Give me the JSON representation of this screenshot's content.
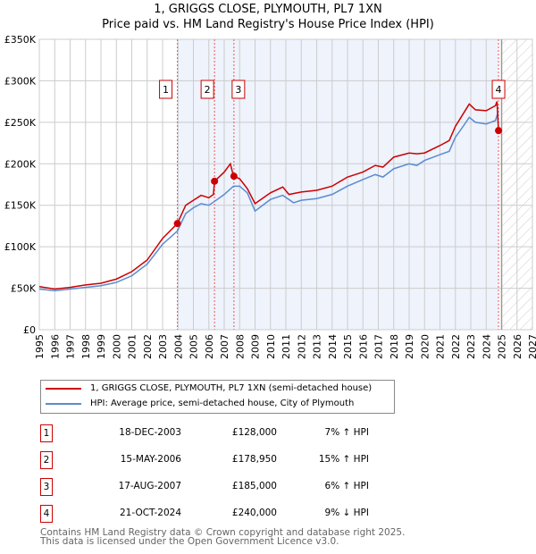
{
  "chart_data": {
    "type": "line",
    "title": "1, GRIGGS CLOSE, PLYMOUTH, PL7 1XN",
    "subtitle": "Price paid vs. HM Land Registry's House Price Index (HPI)",
    "xlim": [
      1995,
      2027
    ],
    "ylim": [
      0,
      350000
    ],
    "x_ticks": [
      "1995",
      "1996",
      "1997",
      "1998",
      "1999",
      "2000",
      "2001",
      "2002",
      "2003",
      "2004",
      "2005",
      "2006",
      "2007",
      "2008",
      "2009",
      "2010",
      "2011",
      "2012",
      "2013",
      "2014",
      "2015",
      "2016",
      "2017",
      "2018",
      "2019",
      "2020",
      "2021",
      "2022",
      "2023",
      "2024",
      "2025",
      "2026",
      "2027"
    ],
    "y_ticks": [
      {
        "v": 0,
        "label": "£0"
      },
      {
        "v": 50000,
        "label": "£50K"
      },
      {
        "v": 100000,
        "label": "£100K"
      },
      {
        "v": 150000,
        "label": "£150K"
      },
      {
        "v": 200000,
        "label": "£200K"
      },
      {
        "v": 250000,
        "label": "£250K"
      },
      {
        "v": 300000,
        "label": "£300K"
      },
      {
        "v": 350000,
        "label": "£350K"
      }
    ],
    "shaded_range": [
      2003.96,
      2024.8
    ],
    "hatched_from": 2025.0,
    "series": [
      {
        "name": "1, GRIGGS CLOSE, PLYMOUTH, PL7 1XN (semi-detached house)",
        "color": "#cc0000",
        "x": [
          1995,
          1996,
          1997,
          1998,
          1999,
          2000,
          2001,
          2002,
          2003,
          2003.96,
          2004.5,
          2005,
          2005.5,
          2006,
          2006.3,
          2006.37,
          2007,
          2007.4,
          2007.6,
          2008,
          2008.5,
          2009,
          2010,
          2010.8,
          2011.2,
          2012,
          2013,
          2014,
          2015,
          2016,
          2016.8,
          2017.3,
          2018,
          2019,
          2019.5,
          2020,
          2021,
          2021.6,
          2022,
          2022.5,
          2022.9,
          2023.3,
          2024,
          2024.6,
          2024.7,
          2024.8
        ],
        "y": [
          52000,
          49000,
          51000,
          54000,
          56000,
          61000,
          70000,
          84000,
          110000,
          128000,
          150000,
          156000,
          162000,
          159000,
          163000,
          178950,
          190000,
          200000,
          185000,
          182000,
          170000,
          152000,
          165000,
          172000,
          163000,
          166000,
          168000,
          173000,
          184000,
          190000,
          198000,
          196000,
          208000,
          213000,
          212000,
          213000,
          222000,
          228000,
          245000,
          260000,
          272000,
          265000,
          264000,
          270000,
          275000,
          240000
        ]
      },
      {
        "name": "HPI: Average price, semi-detached house, City of Plymouth",
        "color": "#5b8bd0",
        "x": [
          1995,
          1996,
          1997,
          1998,
          1999,
          2000,
          2001,
          2002,
          2003,
          2003.96,
          2004.5,
          2005,
          2005.5,
          2006,
          2006.4,
          2007,
          2007.6,
          2008,
          2008.5,
          2009,
          2010,
          2010.8,
          2011.5,
          2012,
          2013,
          2014,
          2015,
          2016,
          2016.8,
          2017.3,
          2018,
          2019,
          2019.5,
          2020,
          2021,
          2021.6,
          2022,
          2022.5,
          2022.9,
          2023.3,
          2024,
          2024.6,
          2024.8
        ],
        "y": [
          49000,
          47000,
          49000,
          51000,
          53000,
          57000,
          65000,
          79000,
          103000,
          119000,
          140000,
          147000,
          152000,
          150000,
          155000,
          163000,
          173000,
          173000,
          165000,
          143000,
          157000,
          162000,
          153000,
          156000,
          158000,
          163000,
          173000,
          181000,
          187000,
          184000,
          194000,
          200000,
          198000,
          204000,
          211000,
          215000,
          232000,
          245000,
          256000,
          250000,
          248000,
          252000,
          264000
        ]
      }
    ],
    "sales": [
      {
        "n": "1",
        "x": 2003.96,
        "date": "18-DEC-2003",
        "price": 128000,
        "price_label": "£128,000",
        "hpi": "7% ↑ HPI"
      },
      {
        "n": "2",
        "x": 2006.37,
        "date": "15-MAY-2006",
        "price": 178950,
        "price_label": "£178,950",
        "hpi": "15% ↑ HPI"
      },
      {
        "n": "3",
        "x": 2007.63,
        "date": "17-AUG-2007",
        "price": 185000,
        "price_label": "£185,000",
        "hpi": "6% ↑ HPI"
      },
      {
        "n": "4",
        "x": 2024.8,
        "date": "21-OCT-2024",
        "price": 240000,
        "price_label": "£240,000",
        "hpi": "9% ↓ HPI"
      }
    ]
  },
  "footer": [
    "Contains HM Land Registry data © Crown copyright and database right 2025.",
    "This data is licensed under the Open Government Licence v3.0."
  ]
}
